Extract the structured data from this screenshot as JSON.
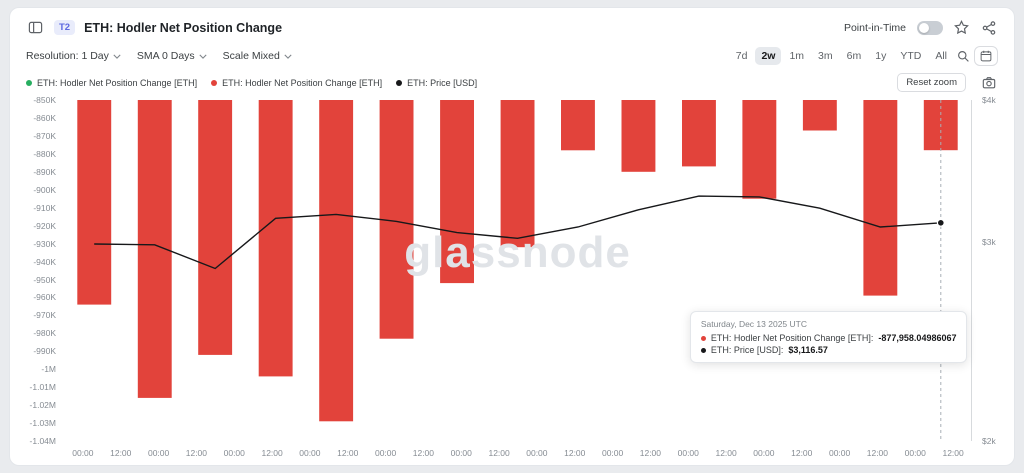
{
  "header": {
    "badge": "T2",
    "title": "ETH: Hodler Net Position Change",
    "point_in_time_label": "Point-in-Time"
  },
  "toolbar": {
    "resolution": "Resolution: 1 Day",
    "sma": "SMA 0 Days",
    "scale": "Scale Mixed",
    "ranges": [
      "7d",
      "2w",
      "1m",
      "3m",
      "6m",
      "1y",
      "YTD",
      "All"
    ],
    "active_range": "2w"
  },
  "legend": [
    {
      "color": "#27ae60",
      "label": "ETH: Hodler Net Position Change [ETH]"
    },
    {
      "color": "#e2433b",
      "label": "ETH: Hodler Net Position Change [ETH]"
    },
    {
      "color": "#17181a",
      "label": "ETH: Price [USD]"
    }
  ],
  "actions": {
    "reset_zoom": "Reset zoom"
  },
  "watermark": "glassnode",
  "tooltip": {
    "date": "Saturday, Dec 13 2025 UTC",
    "rows": [
      {
        "color": "#e2433b",
        "label": "ETH: Hodler Net Position Change [ETH]:",
        "value": "-877,958.04986067"
      },
      {
        "color": "#17181a",
        "label": "ETH: Price [USD]:",
        "value": "$3,116.57"
      }
    ]
  },
  "chart_data": {
    "type": "bar",
    "title": "ETH: Hodler Net Position Change",
    "hover_index": 14,
    "series": [
      {
        "name": "ETH: Hodler Net Position Change [ETH]",
        "type": "bar",
        "color": "#e2433b",
        "axis": "left",
        "values": [
          -964000,
          -1016000,
          -992000,
          -1004000,
          -1029000,
          -983000,
          -952000,
          -932000,
          -878000,
          -890000,
          -887000,
          -905000,
          -867000,
          -959000,
          -877958.04986067
        ]
      },
      {
        "name": "ETH: Price [USD]",
        "type": "line",
        "color": "#17181a",
        "axis": "right",
        "values": [
          2985,
          2980,
          2840,
          3145,
          3170,
          3125,
          3055,
          3020,
          3090,
          3200,
          3290,
          3285,
          3210,
          3090,
          3116.57
        ]
      }
    ],
    "left_axis": {
      "scale": "linear",
      "max": -850000,
      "min": -1040000,
      "ticks": [
        "-850K",
        "-860K",
        "-870K",
        "-880K",
        "-890K",
        "-900K",
        "-910K",
        "-920K",
        "-930K",
        "-940K",
        "-950K",
        "-960K",
        "-970K",
        "-980K",
        "-990K",
        "-1M",
        "-1.01M",
        "-1.02M",
        "-1.03M",
        "-1.04M"
      ],
      "tick_values": [
        -850000,
        -860000,
        -870000,
        -880000,
        -890000,
        -900000,
        -910000,
        -920000,
        -930000,
        -940000,
        -950000,
        -960000,
        -970000,
        -980000,
        -990000,
        -1000000,
        -1010000,
        -1020000,
        -1030000,
        -1040000
      ]
    },
    "right_axis": {
      "scale": "log",
      "max": 4000,
      "min": 2000,
      "ticks": [
        "$4k",
        "$3k",
        "$2k"
      ],
      "tick_values": [
        4000,
        3000,
        2000
      ]
    },
    "x_ticks": [
      "00:00",
      "12:00",
      "00:00",
      "12:00",
      "00:00",
      "12:00",
      "00:00",
      "12:00",
      "00:00",
      "12:00",
      "00:00",
      "12:00",
      "00:00",
      "12:00",
      "00:00",
      "12:00",
      "00:00",
      "12:00",
      "00:00",
      "12:00",
      "00:00",
      "12:00",
      "00:00",
      "12:00"
    ]
  }
}
